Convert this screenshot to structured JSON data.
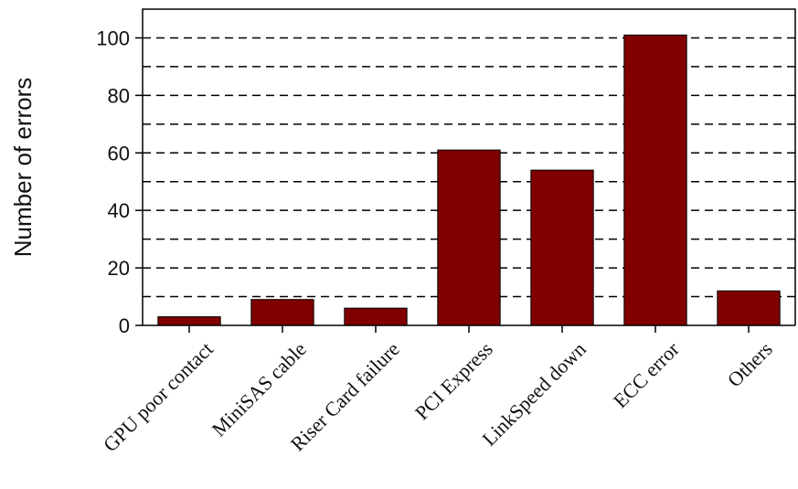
{
  "chart_data": {
    "type": "bar",
    "title": "",
    "xlabel": "",
    "ylabel": "Number of errors",
    "categories": [
      "GPU poor contact",
      "MiniSAS cable",
      "Riser Card failure",
      "PCI Express",
      "LinkSpeed down",
      "ECC error",
      "Others"
    ],
    "values": [
      3,
      9,
      6,
      61,
      54,
      101,
      12
    ],
    "ylim": [
      0,
      110
    ],
    "yticks": [
      0,
      20,
      40,
      60,
      80,
      100
    ],
    "grid_lines": [
      10,
      20,
      30,
      40,
      50,
      60,
      70,
      80,
      90,
      100
    ],
    "grid": "dashed horizontal",
    "legend": "none",
    "bar_color": "#800000",
    "bar_edge_color": "#000000"
  }
}
